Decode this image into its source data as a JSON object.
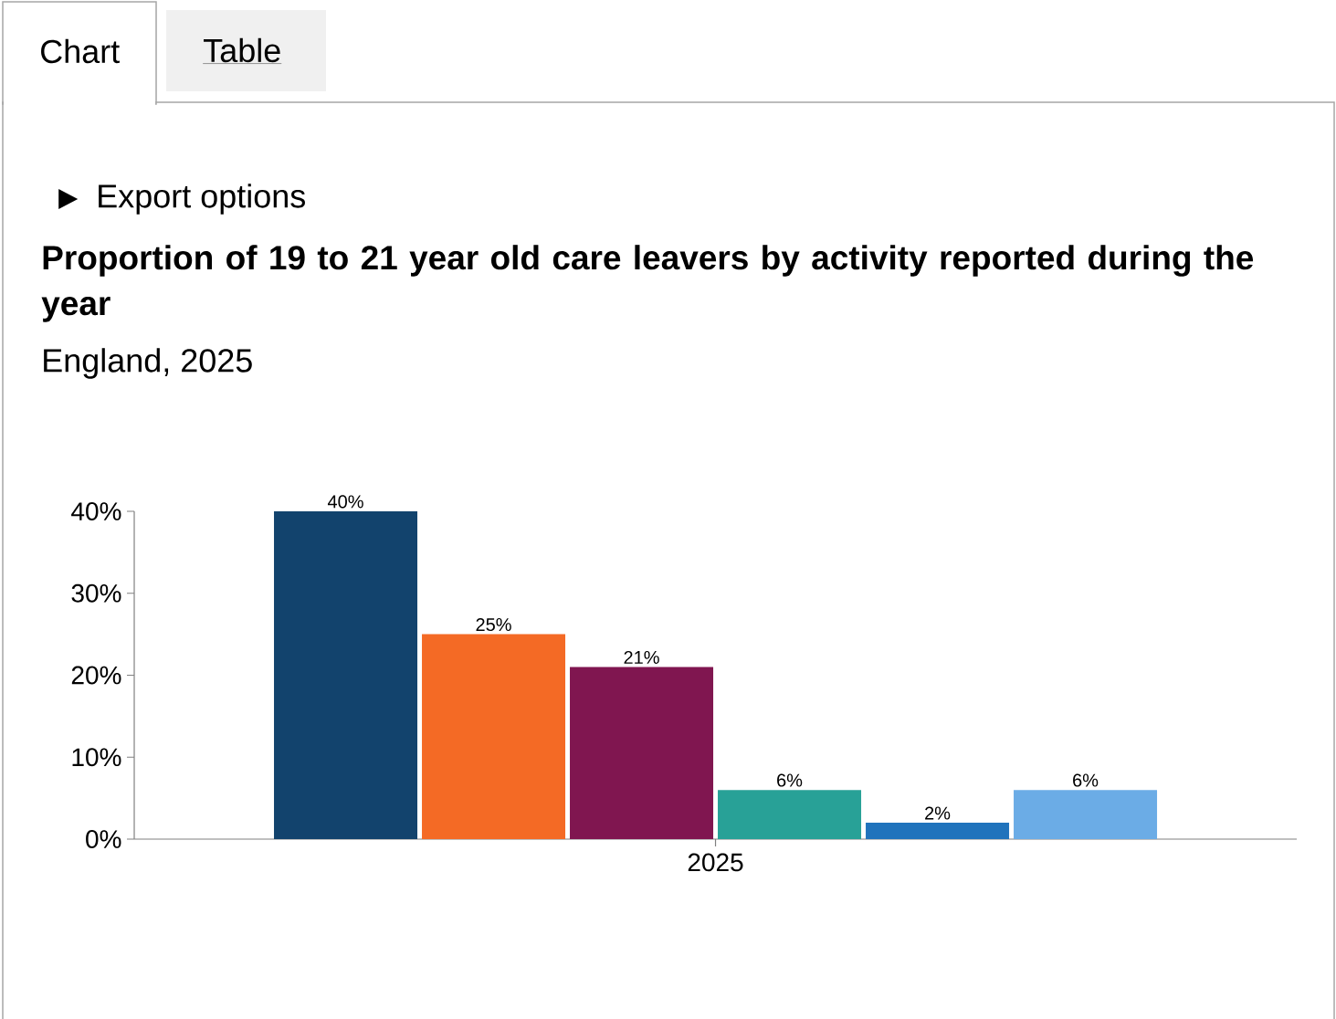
{
  "chart_data": {
    "type": "bar",
    "title": "Proportion of 19 to 21 year old care leavers by activity reported during the year",
    "subtitle": "England, 2025",
    "annotations": [
      "Chart",
      "Table",
      "Export options"
    ],
    "categories": [
      "2025"
    ],
    "series": [
      {
        "color": "#12436d",
        "values": [
          40
        ],
        "value_labels": [
          "40%"
        ]
      },
      {
        "color": "#f46a25",
        "values": [
          25
        ],
        "value_labels": [
          "25%"
        ]
      },
      {
        "color": "#801650",
        "values": [
          21
        ],
        "value_labels": [
          "21%"
        ]
      },
      {
        "color": "#28a197",
        "values": [
          6
        ],
        "value_labels": [
          "6%"
        ]
      },
      {
        "color": "#2073bc",
        "values": [
          2
        ],
        "value_labels": [
          "2%"
        ]
      },
      {
        "color": "#6bace6",
        "values": [
          6
        ],
        "value_labels": [
          "6%"
        ]
      }
    ],
    "ylim": [
      0,
      40
    ],
    "yticks": [
      {
        "value": 0,
        "label": "0%"
      },
      {
        "value": 10,
        "label": "10%"
      },
      {
        "value": 20,
        "label": "20%"
      },
      {
        "value": 30,
        "label": "30%"
      },
      {
        "value": 40,
        "label": "40%"
      }
    ]
  }
}
